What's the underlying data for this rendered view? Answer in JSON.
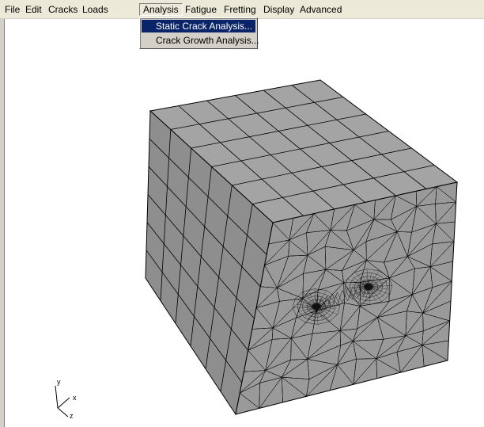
{
  "menubar": {
    "items": [
      "File",
      "Edit",
      "Cracks",
      "Loads",
      "Analysis",
      "Fatigue",
      "Fretting",
      "Display",
      "Advanced"
    ],
    "active": "Analysis"
  },
  "analysis_menu": {
    "items": [
      "Static Crack Analysis...",
      "Crack Growth Analysis..."
    ],
    "highlighted": "Static Crack Analysis..."
  },
  "triad": {
    "y": "y",
    "x": "x",
    "z": "z"
  },
  "colors": {
    "mesh_fill": "#9a9a9a",
    "mesh_lines": "#000000",
    "menu_highlight": "#0a246a"
  }
}
